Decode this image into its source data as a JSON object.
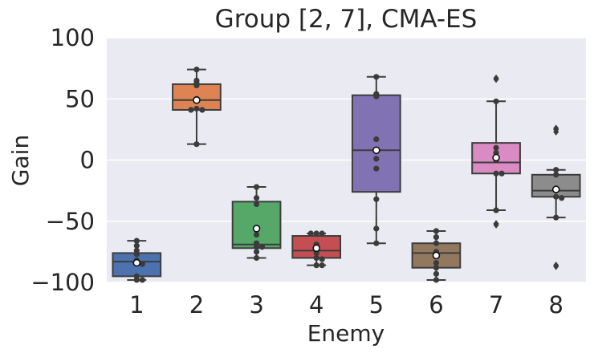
{
  "chart_data": {
    "type": "box",
    "title": "Group [2, 7], CMA-ES",
    "xlabel": "Enemy",
    "ylabel": "Gain",
    "ylim": [
      -100,
      100
    ],
    "yticks": [
      100,
      50,
      0,
      -50,
      -100
    ],
    "ytick_labels": [
      "100",
      "50",
      "0",
      "−50",
      "−100"
    ],
    "grid": true,
    "categories": [
      "1",
      "2",
      "3",
      "4",
      "5",
      "6",
      "7",
      "8"
    ],
    "boxes": [
      {
        "category": "1",
        "color": "#4C72B0",
        "q1": -95,
        "median": -83,
        "q3": -76,
        "whisker_low": -98,
        "whisker_high": -66,
        "mean": -84,
        "outliers": [],
        "points": [
          -66,
          -70,
          -74,
          -77,
          -82,
          -84,
          -85,
          -95,
          -98,
          -98
        ]
      },
      {
        "category": "2",
        "color": "#DD8452",
        "q1": 41,
        "median": 49,
        "q3": 62,
        "whisker_low": 13,
        "whisker_high": 74,
        "mean": 49,
        "outliers": [],
        "points": [
          74,
          65,
          63,
          61,
          50,
          42,
          41,
          41,
          13
        ]
      },
      {
        "category": "3",
        "color": "#55A868",
        "q1": -72,
        "median": -69,
        "q3": -34,
        "whisker_low": -80,
        "whisker_high": -22,
        "mean": -56,
        "outliers": [],
        "points": [
          -22,
          -31,
          -36,
          -61,
          -68,
          -71,
          -71,
          -75,
          -80
        ]
      },
      {
        "category": "4",
        "color": "#C44E52",
        "q1": -80,
        "median": -74,
        "q3": -62,
        "whisker_low": -86,
        "whisker_high": -60,
        "mean": -72,
        "outliers": [],
        "points": [
          -60,
          -60,
          -60,
          -69,
          -73,
          -76,
          -80,
          -81,
          -86,
          -86
        ]
      },
      {
        "category": "5",
        "color": "#8172B3",
        "q1": -26,
        "median": 8,
        "q3": 53,
        "whisker_low": -68,
        "whisker_high": 68,
        "mean": 8,
        "outliers": [],
        "points": [
          68,
          54,
          52,
          17,
          1,
          -7,
          -32,
          -56,
          -68
        ]
      },
      {
        "category": "6",
        "color": "#937860",
        "q1": -88,
        "median": -76,
        "q3": -68,
        "whisker_low": -98,
        "whisker_high": -58,
        "mean": -78,
        "outliers": [],
        "points": [
          -58,
          -63,
          -68,
          -75,
          -78,
          -84,
          -88,
          -93,
          -98
        ]
      },
      {
        "category": "7",
        "color": "#DA8BC3",
        "q1": -11,
        "median": -2,
        "q3": 14,
        "whisker_low": -41,
        "whisker_high": 48,
        "mean": 2,
        "outliers": [
          67,
          66,
          -52,
          -53
        ],
        "points": [
          48,
          10,
          6,
          0,
          -11,
          -11,
          -41
        ]
      },
      {
        "category": "8",
        "color": "#8C8C8C",
        "q1": -30,
        "median": -25,
        "q3": -12,
        "whisker_low": -47,
        "whisker_high": -8,
        "mean": -24,
        "outliers": [
          26,
          25,
          23,
          -86,
          -87
        ],
        "points": [
          -8,
          -12,
          -25,
          -30,
          -31,
          -47
        ]
      }
    ]
  }
}
